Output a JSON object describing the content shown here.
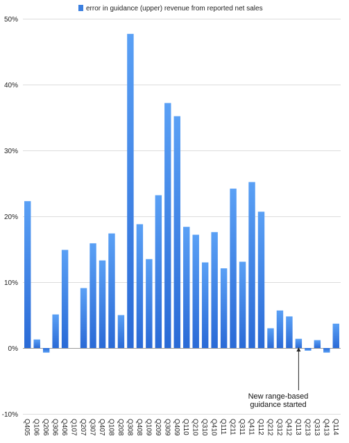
{
  "chart_data": {
    "type": "bar",
    "title": "",
    "xlabel": "",
    "ylabel": "",
    "ylim": [
      -10,
      50
    ],
    "yticks": [
      -10,
      0,
      10,
      20,
      30,
      40,
      50
    ],
    "ytick_labels": [
      "-10%",
      "0%",
      "10%",
      "20%",
      "30%",
      "40%",
      "50%"
    ],
    "grid": true,
    "legend_position": "top-center",
    "series": [
      {
        "name": "error in guidance (upper) revenue from reported net sales",
        "color": "#3b7fe0",
        "values": [
          22.3,
          1.3,
          -0.7,
          5.1,
          14.9,
          0,
          9.1,
          15.9,
          13.3,
          17.4,
          5.0,
          47.7,
          18.8,
          13.5,
          23.2,
          37.2,
          35.2,
          18.4,
          17.2,
          13.0,
          17.6,
          12.1,
          24.2,
          13.1,
          25.2,
          20.7,
          3.0,
          5.7,
          4.8,
          1.4,
          -0.4,
          1.2,
          -0.7,
          3.7
        ]
      }
    ],
    "categories": [
      "Q405",
      "Q106",
      "Q206",
      "Q306",
      "Q406",
      "Q107",
      "Q207",
      "Q307",
      "Q407",
      "Q108",
      "Q208",
      "Q308",
      "Q408",
      "Q109",
      "Q209",
      "Q309",
      "Q409",
      "Q110",
      "Q210",
      "Q310",
      "Q410",
      "Q111",
      "Q211",
      "Q311",
      "Q411",
      "Q112",
      "Q212",
      "Q312",
      "Q412",
      "Q113",
      "Q213",
      "Q313",
      "Q413",
      "Q114"
    ],
    "annotations": [
      {
        "text_lines": [
          "New range-based",
          "guidance started"
        ],
        "category": "Q113"
      }
    ]
  }
}
